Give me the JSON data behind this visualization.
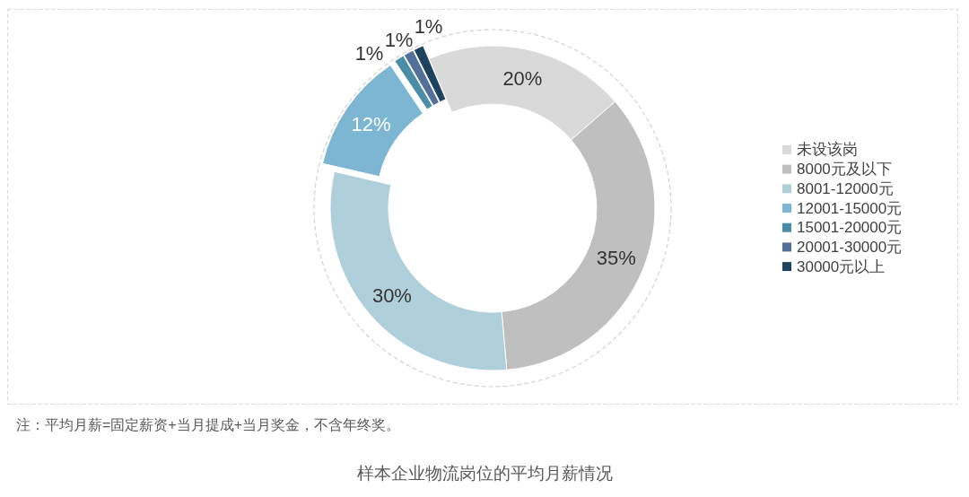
{
  "chart_data": {
    "type": "donut",
    "title": "样本企业物流岗位的平均月薪情况",
    "annotations": [
      "注：平均月薪=固定薪资+当月提成+当月奖金，不含年终奖。"
    ],
    "categories": [
      "未设该岗",
      "8000元及以下",
      "8001-12000元",
      "12001-15000元",
      "15001-20000元",
      "20001-30000元",
      "30000元以上"
    ],
    "values": [
      20,
      35,
      30,
      12,
      1,
      1,
      1
    ],
    "colors": [
      "#d9d9d9",
      "#bfbfbf",
      "#afd0da",
      "#7cb6d2",
      "#4b8ca7",
      "#53709b",
      "#1e435f"
    ],
    "value_labels": [
      "20%",
      "35%",
      "30%",
      "12%",
      "1%",
      "1%",
      "1%"
    ],
    "legend": "right"
  }
}
